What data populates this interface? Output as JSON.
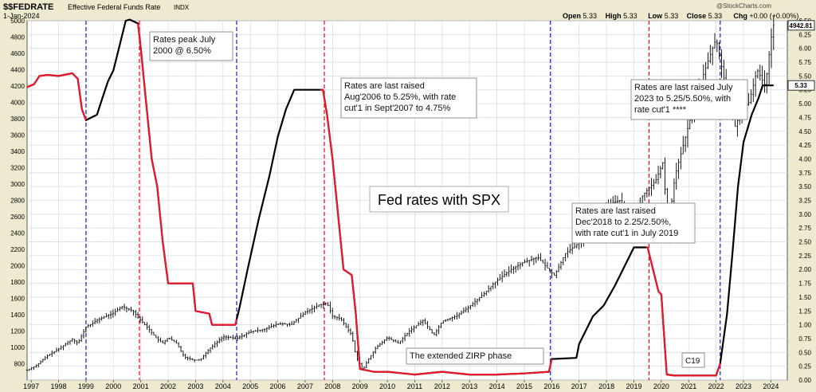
{
  "header": {
    "symbol": "$$FEDRATE",
    "name": "Effective Federal Funds Rate",
    "exchange": "INDX",
    "date": "1-Jan-2024",
    "watermark": "@StockCharts.com",
    "ohlc": [
      {
        "label": "Open",
        "value": "5.33"
      },
      {
        "label": "High",
        "value": "5.33"
      },
      {
        "label": "Low",
        "value": "5.33"
      },
      {
        "label": "Close",
        "value": "5.33"
      },
      {
        "label": "Chg",
        "value": "+0.00 (+0.00%)"
      }
    ]
  },
  "chart_data": {
    "type": "line",
    "title": "Fed rates with SPX",
    "x_range": [
      1996.85,
      2024.6
    ],
    "x_ticks": [
      "1997",
      "1998",
      "1999",
      "2000",
      "2001",
      "2002",
      "2003",
      "2004",
      "2005",
      "2006",
      "2007",
      "2008",
      "2009",
      "2010",
      "2011",
      "2012",
      "2013",
      "2014",
      "2015",
      "2016",
      "2017",
      "2018",
      "2019",
      "2020",
      "2021",
      "2022",
      "2023",
      "2024"
    ],
    "left_axis": {
      "range": [
        600,
        5000
      ],
      "ticks": [
        "800",
        "1000",
        "1200",
        "1400",
        "1600",
        "1800",
        "2000",
        "2200",
        "2400",
        "2600",
        "2800",
        "3000",
        "3200",
        "3400",
        "3600",
        "3800",
        "4000",
        "4200",
        "4400",
        "4600",
        "4800",
        "5000"
      ]
    },
    "right_axis": {
      "range": [
        0,
        6.5
      ],
      "ticks": [
        "0.00",
        "0.25",
        "0.50",
        "0.75",
        "1.00",
        "1.25",
        "1.50",
        "1.75",
        "2.00",
        "2.25",
        "2.50",
        "2.75",
        "3.00",
        "3.25",
        "3.50",
        "3.75",
        "4.00",
        "4.25",
        "4.50",
        "4.75",
        "5.00",
        "5.25",
        "5.50",
        "5.75",
        "6.00",
        "6.25",
        "6.50"
      ]
    },
    "last_value_labels": {
      "spx": "4942.81",
      "rate": "5.33"
    },
    "series": [
      {
        "key": "rate",
        "axis": "right",
        "color": "#000000",
        "highlight_color": "#e8192c",
        "points": [
          [
            1996.85,
            5.3
          ],
          [
            1997.1,
            5.35
          ],
          [
            1997.3,
            5.5
          ],
          [
            1997.6,
            5.52
          ],
          [
            1998.0,
            5.5
          ],
          [
            1998.2,
            5.52
          ],
          [
            1998.5,
            5.55
          ],
          [
            1998.7,
            5.45
          ],
          [
            1998.85,
            4.9
          ],
          [
            1999.0,
            4.7
          ],
          [
            1999.2,
            4.75
          ],
          [
            1999.4,
            4.8
          ],
          [
            1999.6,
            5.1
          ],
          [
            1999.8,
            5.4
          ],
          [
            2000.0,
            5.6
          ],
          [
            2000.2,
            6.0
          ],
          [
            2000.45,
            6.5
          ],
          [
            2000.6,
            6.52
          ],
          [
            2000.9,
            6.45
          ],
          [
            2001.0,
            6.0
          ],
          [
            2001.2,
            5.0
          ],
          [
            2001.4,
            4.0
          ],
          [
            2001.6,
            3.5
          ],
          [
            2001.8,
            2.5
          ],
          [
            2002.0,
            1.75
          ],
          [
            2002.5,
            1.75
          ],
          [
            2002.9,
            1.75
          ],
          [
            2003.0,
            1.25
          ],
          [
            2003.5,
            1.2
          ],
          [
            2003.6,
            1.0
          ],
          [
            2004.0,
            1.0
          ],
          [
            2004.45,
            1.0
          ],
          [
            2004.6,
            1.3
          ],
          [
            2004.9,
            2.0
          ],
          [
            2005.3,
            2.9
          ],
          [
            2005.7,
            3.7
          ],
          [
            2006.0,
            4.4
          ],
          [
            2006.3,
            4.9
          ],
          [
            2006.6,
            5.25
          ],
          [
            2007.0,
            5.25
          ],
          [
            2007.65,
            5.25
          ],
          [
            2007.8,
            4.8
          ],
          [
            2008.0,
            4.0
          ],
          [
            2008.2,
            3.0
          ],
          [
            2008.4,
            2.0
          ],
          [
            2008.7,
            1.9
          ],
          [
            2008.85,
            1.2
          ],
          [
            2009.0,
            0.2
          ],
          [
            2009.5,
            0.15
          ],
          [
            2010.0,
            0.15
          ],
          [
            2011.0,
            0.1
          ],
          [
            2012.0,
            0.15
          ],
          [
            2013.0,
            0.1
          ],
          [
            2014.0,
            0.1
          ],
          [
            2015.0,
            0.12
          ],
          [
            2015.9,
            0.15
          ],
          [
            2016.0,
            0.38
          ],
          [
            2016.9,
            0.4
          ],
          [
            2017.0,
            0.65
          ],
          [
            2017.5,
            1.15
          ],
          [
            2017.9,
            1.35
          ],
          [
            2018.3,
            1.7
          ],
          [
            2018.7,
            2.1
          ],
          [
            2019.0,
            2.4
          ],
          [
            2019.5,
            2.4
          ],
          [
            2019.7,
            2.0
          ],
          [
            2019.9,
            1.6
          ],
          [
            2020.0,
            1.55
          ],
          [
            2020.2,
            0.1
          ],
          [
            2020.5,
            0.08
          ],
          [
            2021.0,
            0.08
          ],
          [
            2021.5,
            0.08
          ],
          [
            2022.0,
            0.08
          ],
          [
            2022.15,
            0.3
          ],
          [
            2022.4,
            1.2
          ],
          [
            2022.6,
            2.3
          ],
          [
            2022.8,
            3.5
          ],
          [
            2023.0,
            4.3
          ],
          [
            2023.3,
            4.8
          ],
          [
            2023.55,
            5.1
          ],
          [
            2023.7,
            5.33
          ],
          [
            2024.1,
            5.33
          ]
        ],
        "highlight_ranges": [
          [
            2000.9,
            2004.5
          ],
          [
            2007.55,
            2016.0
          ],
          [
            2019.45,
            2022.15
          ]
        ]
      },
      {
        "key": "spx",
        "axis": "left",
        "style": "ohlc",
        "color": "#000000",
        "points": [
          [
            1996.85,
            720
          ],
          [
            1997.2,
            780
          ],
          [
            1997.6,
            900
          ],
          [
            1998.0,
            980
          ],
          [
            1998.5,
            1100
          ],
          [
            1998.7,
            1050
          ],
          [
            1999.0,
            1250
          ],
          [
            1999.5,
            1350
          ],
          [
            2000.0,
            1420
          ],
          [
            2000.3,
            1500
          ],
          [
            2000.7,
            1450
          ],
          [
            2001.0,
            1330
          ],
          [
            2001.3,
            1220
          ],
          [
            2001.6,
            1100
          ],
          [
            2001.8,
            1050
          ],
          [
            2002.0,
            1120
          ],
          [
            2002.3,
            1050
          ],
          [
            2002.6,
            880
          ],
          [
            2002.8,
            860
          ],
          [
            2003.0,
            840
          ],
          [
            2003.2,
            860
          ],
          [
            2003.5,
            980
          ],
          [
            2004.0,
            1130
          ],
          [
            2004.5,
            1110
          ],
          [
            2005.0,
            1190
          ],
          [
            2005.5,
            1220
          ],
          [
            2006.0,
            1290
          ],
          [
            2006.5,
            1280
          ],
          [
            2007.0,
            1430
          ],
          [
            2007.5,
            1520
          ],
          [
            2007.8,
            1540
          ],
          [
            2008.0,
            1380
          ],
          [
            2008.3,
            1350
          ],
          [
            2008.7,
            1150
          ],
          [
            2008.85,
            900
          ],
          [
            2009.1,
            720
          ],
          [
            2009.3,
            850
          ],
          [
            2009.6,
            1000
          ],
          [
            2010.0,
            1120
          ],
          [
            2010.4,
            1050
          ],
          [
            2010.8,
            1200
          ],
          [
            2011.3,
            1330
          ],
          [
            2011.7,
            1150
          ],
          [
            2012.0,
            1320
          ],
          [
            2012.5,
            1380
          ],
          [
            2013.0,
            1500
          ],
          [
            2013.5,
            1650
          ],
          [
            2014.0,
            1820
          ],
          [
            2014.5,
            1950
          ],
          [
            2015.0,
            2050
          ],
          [
            2015.5,
            2100
          ],
          [
            2015.9,
            1950
          ],
          [
            2016.1,
            1880
          ],
          [
            2016.5,
            2150
          ],
          [
            2017.0,
            2280
          ],
          [
            2017.5,
            2450
          ],
          [
            2018.0,
            2750
          ],
          [
            2018.5,
            2800
          ],
          [
            2018.95,
            2450
          ],
          [
            2019.3,
            2850
          ],
          [
            2019.8,
            3050
          ],
          [
            2020.1,
            3300
          ],
          [
            2020.2,
            2300
          ],
          [
            2020.5,
            3100
          ],
          [
            2020.9,
            3600
          ],
          [
            2021.3,
            4100
          ],
          [
            2021.8,
            4600
          ],
          [
            2022.0,
            4780
          ],
          [
            2022.4,
            4100
          ],
          [
            2022.7,
            3700
          ],
          [
            2022.9,
            3900
          ],
          [
            2023.2,
            4000
          ],
          [
            2023.5,
            4400
          ],
          [
            2023.8,
            4200
          ],
          [
            2024.0,
            4770
          ],
          [
            2024.1,
            4943
          ]
        ]
      }
    ],
    "vlines": [
      {
        "x": 1999.0,
        "color": "#1f2fcf"
      },
      {
        "x": 2000.95,
        "color": "#e8192c"
      },
      {
        "x": 2004.5,
        "color": "#1f2fcf"
      },
      {
        "x": 2007.7,
        "color": "#e8192c"
      },
      {
        "x": 2015.95,
        "color": "#1f2fcf"
      },
      {
        "x": 2019.55,
        "color": "#e8192c"
      },
      {
        "x": 2022.15,
        "color": "#1f2fcf"
      }
    ],
    "annotations": [
      {
        "lines": [
          "Rates peak July",
          "2000 @ 6.50%"
        ]
      },
      {
        "lines": [
          "Rates are last raised",
          "Aug'2006 to 5.25%, with rate",
          "cut'1 in Sept'2007 to 4.75%"
        ]
      },
      {
        "lines": [
          "Rates are last raised July",
          "2023 to 5.25/5.50%, with",
          "rate cut'1 ****"
        ]
      },
      {
        "lines": [
          "Rates are last raised",
          "Dec'2018 to 2.25/2.50%,",
          "with rate cut'1 in July 2019"
        ]
      },
      {
        "lines": [
          "The extended ZIRP phase"
        ]
      },
      {
        "lines": [
          "C19"
        ]
      }
    ]
  }
}
